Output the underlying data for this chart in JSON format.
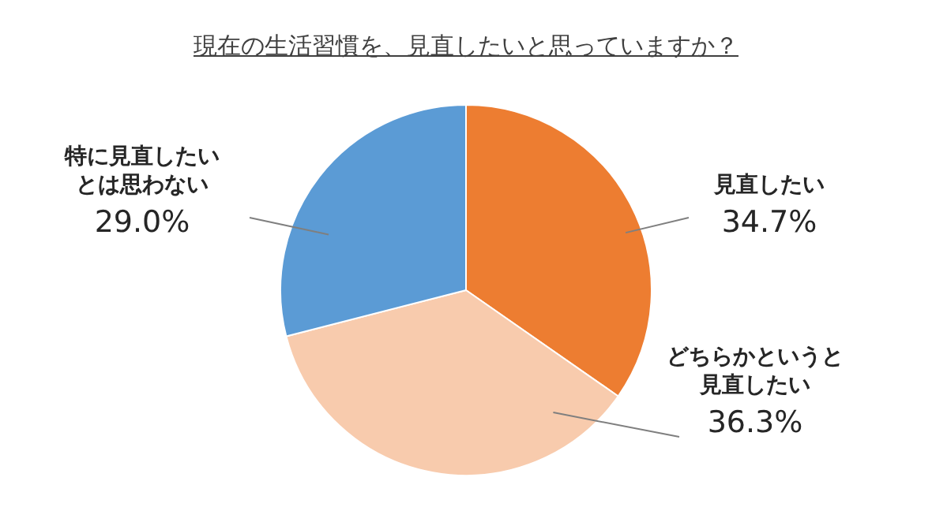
{
  "chart_data": {
    "type": "pie",
    "title": "現在の生活習慣を、見直したいと思っていますか？",
    "categories": [
      "見直したい",
      "どちらかというと見直したい",
      "特に見直したいとは思わない"
    ],
    "values": [
      34.7,
      36.3,
      29.0
    ],
    "value_labels": [
      "34.7%",
      "36.3%",
      "29.0%"
    ],
    "colors": [
      "#ed7d31",
      "#f8cbad",
      "#5b9bd5"
    ],
    "legend": false
  }
}
